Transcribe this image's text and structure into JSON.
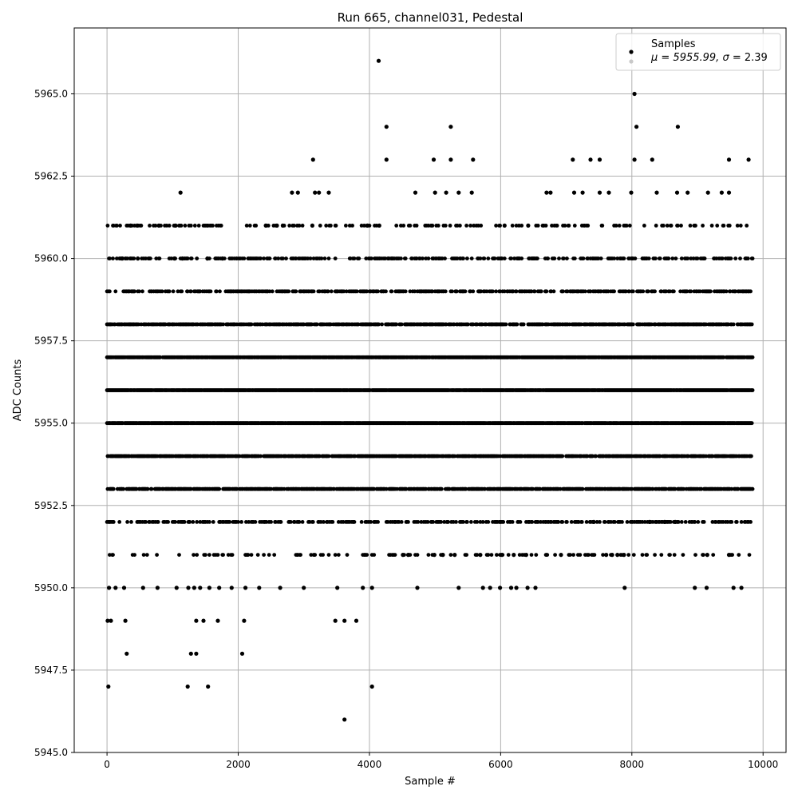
{
  "chart_data": {
    "type": "scatter",
    "title": "Run 665, channel031, Pedestal",
    "xlabel": "Sample #",
    "ylabel": "ADC Counts",
    "xlim": [
      -500,
      10350
    ],
    "ylim": [
      5945.0,
      5967.0
    ],
    "xticks": [
      0,
      2000,
      4000,
      6000,
      8000,
      10000
    ],
    "yticks": [
      5945.0,
      5947.5,
      5950.0,
      5952.5,
      5955.0,
      5957.5,
      5960.0,
      5962.5,
      5965.0
    ],
    "xtick_labels": [
      "0",
      "2000",
      "4000",
      "6000",
      "8000",
      "10000"
    ],
    "ytick_labels": [
      "5945.0",
      "5947.5",
      "5950.0",
      "5952.5",
      "5955.0",
      "5957.5",
      "5960.0",
      "5962.5",
      "5965.0"
    ],
    "grid": true,
    "legend": {
      "placement": "top-right",
      "entries": [
        {
          "label": "Samples",
          "color": "#000000"
        },
        {
          "label_prefix": "μ = 5955.99, ",
          "label_sigma": "σ",
          "label_suffix": " = 2.39",
          "color": "#c8c8c8"
        }
      ]
    },
    "point_color": "#000000",
    "series": [
      {
        "name": "Samples",
        "x_range": [
          0,
          9840
        ],
        "levels": [
          {
            "y": 5956,
            "density": 0.95
          },
          {
            "y": 5955,
            "density": 0.95
          },
          {
            "y": 5957,
            "density": 0.9
          },
          {
            "y": 5954,
            "density": 0.7
          },
          {
            "y": 5953,
            "density": 0.65
          },
          {
            "y": 5958,
            "density": 0.6
          },
          {
            "y": 5959,
            "density": 0.4
          },
          {
            "y": 5952,
            "density": 0.3
          },
          {
            "y": 5960,
            "density": 0.3
          },
          {
            "y": 5951,
            "density": 0.12
          },
          {
            "y": 5961,
            "density": 0.15
          }
        ],
        "points": [
          [
            20,
            5947
          ],
          [
            1230,
            5947
          ],
          [
            1540,
            5947
          ],
          [
            4040,
            5947
          ],
          [
            3620,
            5946
          ],
          [
            300,
            5948
          ],
          [
            1280,
            5948
          ],
          [
            1360,
            5948
          ],
          [
            2060,
            5948
          ],
          [
            10,
            5949
          ],
          [
            60,
            5949
          ],
          [
            280,
            5949
          ],
          [
            1360,
            5949
          ],
          [
            1470,
            5949
          ],
          [
            1690,
            5949
          ],
          [
            2090,
            5949
          ],
          [
            3480,
            5949
          ],
          [
            3620,
            5949
          ],
          [
            3800,
            5949
          ],
          [
            30,
            5950
          ],
          [
            130,
            5950
          ],
          [
            260,
            5950
          ],
          [
            550,
            5950
          ],
          [
            770,
            5950
          ],
          [
            1060,
            5950
          ],
          [
            1240,
            5950
          ],
          [
            1330,
            5950
          ],
          [
            1420,
            5950
          ],
          [
            1560,
            5950
          ],
          [
            1710,
            5950
          ],
          [
            1900,
            5950
          ],
          [
            2110,
            5950
          ],
          [
            2320,
            5950
          ],
          [
            2640,
            5950
          ],
          [
            3000,
            5950
          ],
          [
            3510,
            5950
          ],
          [
            3900,
            5950
          ],
          [
            4040,
            5950
          ],
          [
            4730,
            5950
          ],
          [
            5360,
            5950
          ],
          [
            5730,
            5950
          ],
          [
            5840,
            5950
          ],
          [
            5990,
            5950
          ],
          [
            6160,
            5950
          ],
          [
            6240,
            5950
          ],
          [
            6410,
            5950
          ],
          [
            6530,
            5950
          ],
          [
            7890,
            5950
          ],
          [
            8960,
            5950
          ],
          [
            9140,
            5950
          ],
          [
            9550,
            5950
          ],
          [
            9670,
            5950
          ],
          [
            6920,
            5951
          ],
          [
            7610,
            5951
          ],
          [
            7700,
            5951
          ],
          [
            7780,
            5951
          ],
          [
            7880,
            5951
          ],
          [
            9150,
            5951
          ],
          [
            9480,
            5951
          ],
          [
            4510,
            5951
          ],
          [
            4590,
            5951
          ],
          [
            4990,
            5951
          ],
          [
            5120,
            5951
          ],
          [
            5300,
            5951
          ],
          [
            5690,
            5951
          ],
          [
            6020,
            5951
          ],
          [
            6200,
            5951
          ],
          [
            6390,
            5951
          ],
          [
            7420,
            5952
          ],
          [
            8270,
            5952
          ],
          [
            8500,
            5952
          ],
          [
            8660,
            5952
          ],
          [
            230,
            5960
          ],
          [
            470,
            5960
          ],
          [
            1030,
            5960
          ],
          [
            1150,
            5960
          ],
          [
            1530,
            5960
          ],
          [
            1760,
            5960
          ],
          [
            360,
            5961
          ],
          [
            460,
            5961
          ],
          [
            790,
            5961
          ],
          [
            1040,
            5961
          ],
          [
            2420,
            5961
          ],
          [
            2590,
            5961
          ],
          [
            2680,
            5961
          ],
          [
            3130,
            5961
          ],
          [
            3970,
            5961
          ],
          [
            4150,
            5961
          ],
          [
            6060,
            5961
          ],
          [
            6420,
            5961
          ],
          [
            1120,
            5962
          ],
          [
            2820,
            5962
          ],
          [
            2910,
            5962
          ],
          [
            3170,
            5962
          ],
          [
            3230,
            5962
          ],
          [
            3380,
            5962
          ],
          [
            4700,
            5962
          ],
          [
            5000,
            5962
          ],
          [
            5170,
            5962
          ],
          [
            5360,
            5962
          ],
          [
            5560,
            5962
          ],
          [
            6700,
            5962
          ],
          [
            6760,
            5962
          ],
          [
            7120,
            5962
          ],
          [
            7250,
            5962
          ],
          [
            7510,
            5962
          ],
          [
            7650,
            5962
          ],
          [
            7990,
            5962
          ],
          [
            8380,
            5962
          ],
          [
            8690,
            5962
          ],
          [
            8850,
            5962
          ],
          [
            9160,
            5962
          ],
          [
            9370,
            5962
          ],
          [
            9480,
            5962
          ],
          [
            3140,
            5963
          ],
          [
            4260,
            5963
          ],
          [
            4980,
            5963
          ],
          [
            5240,
            5963
          ],
          [
            5580,
            5963
          ],
          [
            7100,
            5963
          ],
          [
            7370,
            5963
          ],
          [
            7510,
            5963
          ],
          [
            8040,
            5963
          ],
          [
            8310,
            5963
          ],
          [
            9480,
            5963
          ],
          [
            9780,
            5963
          ],
          [
            4260,
            5964
          ],
          [
            5240,
            5964
          ],
          [
            8070,
            5964
          ],
          [
            8700,
            5964
          ],
          [
            8040,
            5965
          ],
          [
            4140,
            5966
          ]
        ]
      }
    ]
  }
}
